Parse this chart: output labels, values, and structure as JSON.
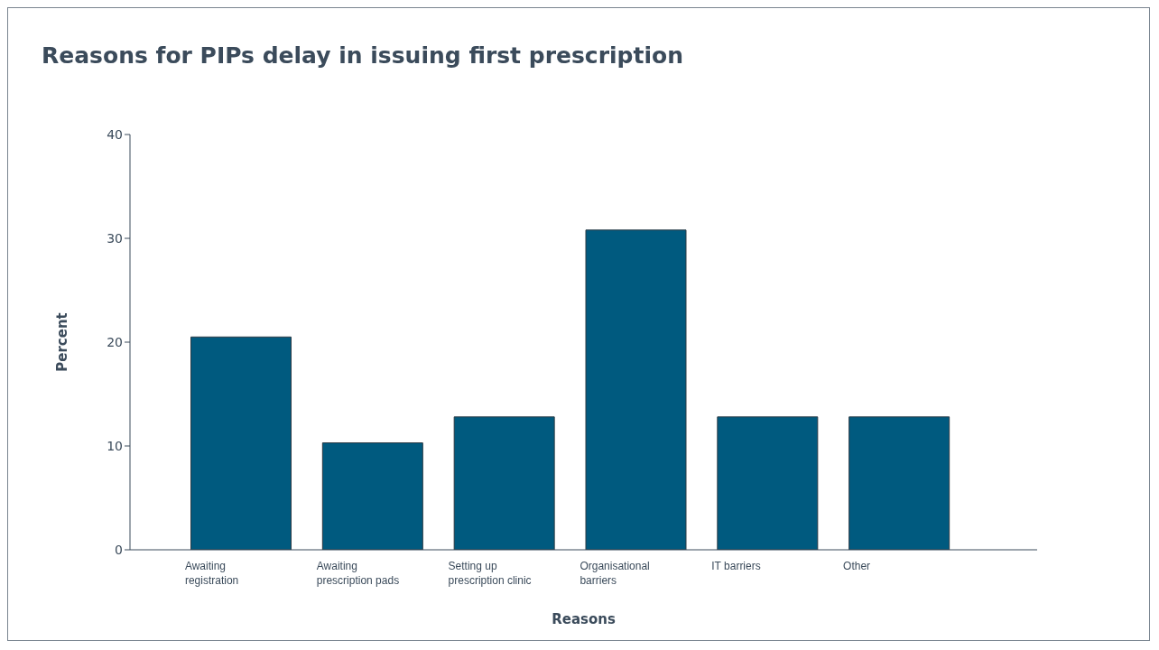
{
  "chart_data": {
    "type": "bar",
    "title": "Reasons for PIPs delay in issuing first prescription",
    "xlabel": "Reasons",
    "ylabel": "Percent",
    "categories": [
      "Awaiting registration",
      "Awaiting prescription pads",
      "Setting up prescription clinic",
      "Organisational barriers",
      "IT barriers",
      "Other"
    ],
    "values": [
      20.5,
      10.3,
      12.8,
      30.8,
      12.8,
      12.8
    ],
    "color": "#005a7f",
    "ylim": [
      0,
      40
    ],
    "yticks": [
      0,
      10,
      20,
      30,
      40
    ],
    "grid": false
  }
}
